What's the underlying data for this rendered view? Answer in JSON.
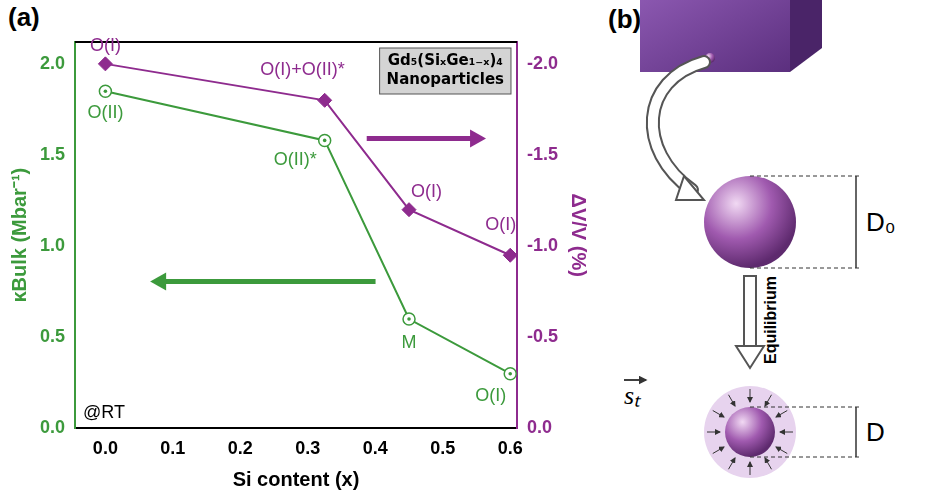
{
  "chart_data": {
    "type": "line",
    "title": "(a)",
    "x_label": "Si content (x)",
    "y_label": "κBulk (Mbar⁻¹)",
    "y2_label": "ΔV/V (%)",
    "x": [
      0,
      0.325,
      0.45,
      0.6
    ],
    "series": [
      {
        "color": "#3c9a3c",
        "marker": "open_circle",
        "line_style": "solid",
        "values": [
          1.85,
          1.58,
          0.6,
          0.3
        ],
        "point_labels": [
          "O(II)",
          "O(II)*",
          "M",
          "O(I)"
        ]
      },
      {
        "color": "#8e2b8e",
        "marker": "diamond",
        "line_style": "solid",
        "axis": "y2",
        "values": [
          -2.0,
          -1.8,
          -1.2,
          -0.95
        ],
        "point_labels": [
          "O(I)",
          "O(I)+O(II)*",
          "O(I)",
          "O(I)"
        ]
      }
    ],
    "xlim": [
      -0.045,
      0.61
    ],
    "xticks": [
      {
        "value": 0,
        "label": "0.0"
      },
      0.1,
      0.2,
      0.3,
      0.4,
      0.5,
      0.6
    ],
    "ylim": [
      0,
      2.12
    ],
    "yticks": [
      {
        "value": 0,
        "label": "0.0"
      },
      0.5,
      {
        "value": 1,
        "label": "1.0"
      },
      1.5,
      {
        "value": 2,
        "label": "2.0"
      }
    ],
    "y2lim": [
      0,
      -2.12
    ],
    "y2ticks": [
      {
        "value": 0,
        "label": "0.0"
      },
      -0.5,
      {
        "value": -1,
        "label": "-1.0"
      },
      -1.5,
      {
        "value": -2,
        "label": "-2.0"
      }
    ],
    "grid": false,
    "annotations": [
      {
        "text": [
          "Gd₅(SiₓGe₁₋ₓ)₄",
          "Nanoparticles"
        ]
      },
      {
        "text": "@RT"
      }
    ]
  },
  "diagram": {
    "label": "(b)",
    "initial_size": "D₀",
    "process": "Equilibrium",
    "stress": "sₜ",
    "final_size": "D"
  }
}
